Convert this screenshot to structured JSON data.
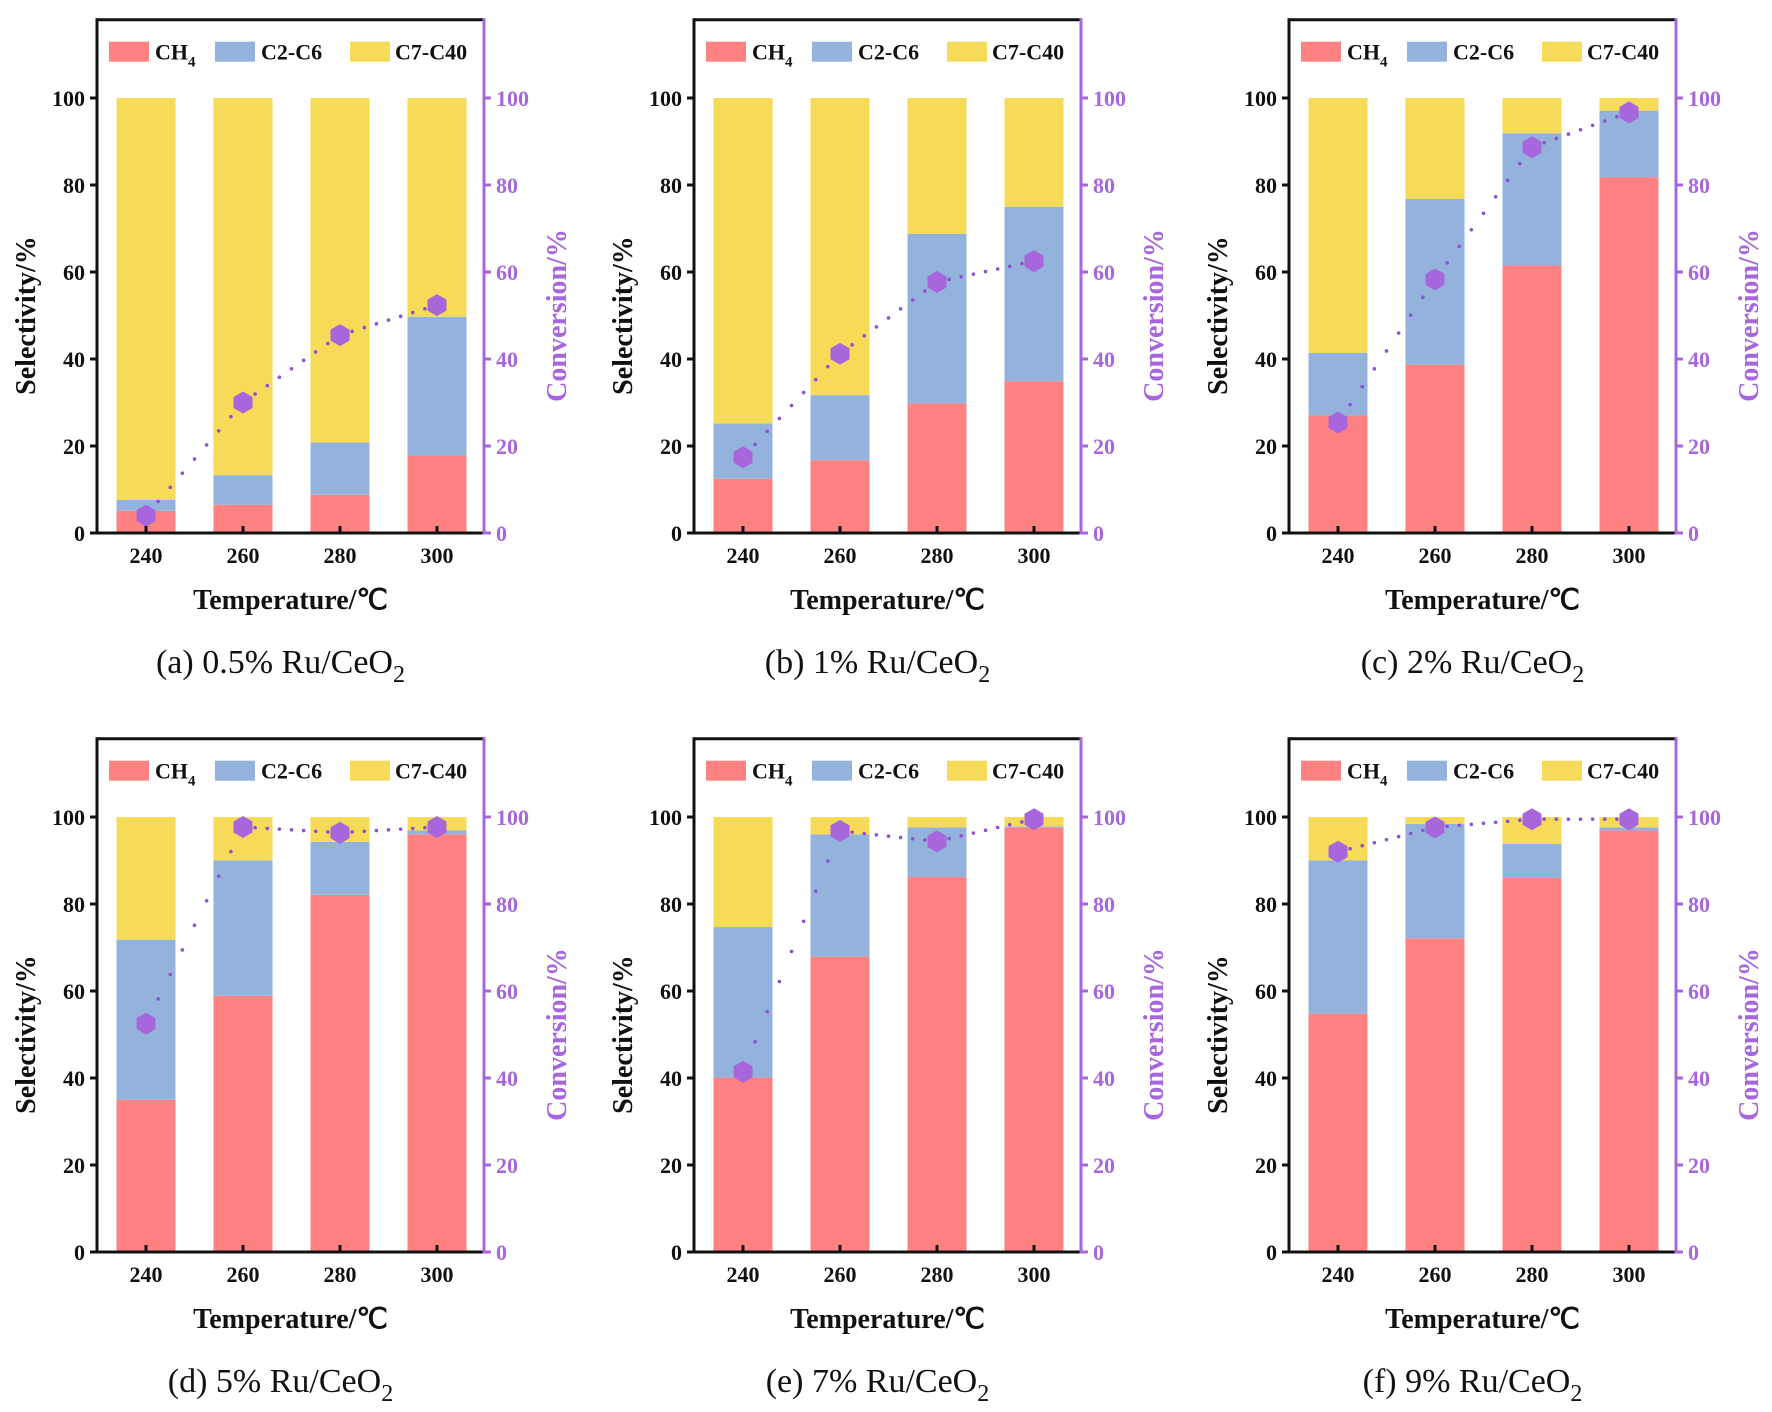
{
  "figure": {
    "series_colors": {
      "CH4": "#FF8282",
      "C2-C6": "#93B3DD",
      "C7-C40": "#F5DB57",
      "conversion": "#A866DD",
      "conversion_dots": "#8C52D2",
      "axis_left": "#111111",
      "axis_right": "#A866DD"
    }
  },
  "chart_data": [
    {
      "panel": "a",
      "caption": "(a) 0.5% Ru/CeO",
      "caption_sub": "2",
      "type": "bar",
      "stacked": true,
      "categories": [
        "240",
        "260",
        "280",
        "300"
      ],
      "xlabel": "Temperature/℃",
      "ylabel": "Selectivity/%",
      "y2label": "Conversion/%",
      "ylim": [
        0,
        118
      ],
      "y2lim": [
        0,
        118
      ],
      "yticks": [
        0,
        20,
        40,
        60,
        80,
        100
      ],
      "legend": {
        "position": "top",
        "entries": [
          "CH",
          "C2-C6",
          "C7-C40"
        ],
        "ch4_sub": "4"
      },
      "series": [
        {
          "name": "CH4",
          "values": [
            5.1,
            6.5,
            8.8,
            17.8
          ]
        },
        {
          "name": "C2-C6",
          "values": [
            2.5,
            6.8,
            12.0,
            31.9
          ]
        },
        {
          "name": "C7-C40",
          "values": [
            92.4,
            86.7,
            79.2,
            50.3
          ]
        }
      ],
      "conversion": {
        "name": "Conversion",
        "type": "scatter-dotted",
        "axis": "right",
        "values": [
          4.0,
          30.0,
          45.5,
          52.4
        ]
      }
    },
    {
      "panel": "b",
      "caption": "(b) 1% Ru/CeO",
      "caption_sub": "2",
      "type": "bar",
      "stacked": true,
      "categories": [
        "240",
        "260",
        "280",
        "300"
      ],
      "xlabel": "Temperature/℃",
      "ylabel": "Selectivity/%",
      "y2label": "Conversion/%",
      "ylim": [
        0,
        118
      ],
      "y2lim": [
        0,
        118
      ],
      "yticks": [
        0,
        20,
        40,
        60,
        80,
        100
      ],
      "legend": {
        "position": "top",
        "entries": [
          "CH",
          "C2-C6",
          "C7-C40"
        ],
        "ch4_sub": "4"
      },
      "series": [
        {
          "name": "CH4",
          "values": [
            12.5,
            16.7,
            29.8,
            34.9
          ]
        },
        {
          "name": "C2-C6",
          "values": [
            12.7,
            15.0,
            39.0,
            40.1
          ]
        },
        {
          "name": "C7-C40",
          "values": [
            74.8,
            68.3,
            31.2,
            25.0
          ]
        }
      ],
      "conversion": {
        "name": "Conversion",
        "type": "scatter-dotted",
        "axis": "right",
        "values": [
          17.4,
          41.2,
          57.7,
          62.5
        ]
      }
    },
    {
      "panel": "c",
      "caption": "(c) 2% Ru/CeO",
      "caption_sub": "2",
      "type": "bar",
      "stacked": true,
      "categories": [
        "240",
        "260",
        "280",
        "300"
      ],
      "xlabel": "Temperature/℃",
      "ylabel": "Selectivity/%",
      "y2label": "Conversion/%",
      "ylim": [
        0,
        118
      ],
      "y2lim": [
        0,
        118
      ],
      "yticks": [
        0,
        20,
        40,
        60,
        80,
        100
      ],
      "legend": {
        "position": "top",
        "entries": [
          "CH",
          "C2-C6",
          "C7-C40"
        ],
        "ch4_sub": "4"
      },
      "series": [
        {
          "name": "CH4",
          "values": [
            27.1,
            38.7,
            61.5,
            81.8
          ]
        },
        {
          "name": "C2-C6",
          "values": [
            14.3,
            38.1,
            30.4,
            15.3
          ]
        },
        {
          "name": "C7-C40",
          "values": [
            58.6,
            23.2,
            8.1,
            2.9
          ]
        }
      ],
      "conversion": {
        "name": "Conversion",
        "type": "scatter-dotted",
        "axis": "right",
        "values": [
          25.4,
          58.3,
          88.7,
          96.7
        ]
      }
    },
    {
      "panel": "d",
      "caption": "(d) 5% Ru/CeO",
      "caption_sub": "2",
      "type": "bar",
      "stacked": true,
      "categories": [
        "240",
        "260",
        "280",
        "300"
      ],
      "xlabel": "Temperature/℃",
      "ylabel": "Selectivity/%",
      "y2label": "Conversion/%",
      "ylim": [
        0,
        118
      ],
      "y2lim": [
        0,
        118
      ],
      "yticks": [
        0,
        20,
        40,
        60,
        80,
        100
      ],
      "legend": {
        "position": "top",
        "entries": [
          "CH",
          "C2-C6",
          "C7-C40"
        ],
        "ch4_sub": "4"
      },
      "series": [
        {
          "name": "CH4",
          "values": [
            35.0,
            58.9,
            82.1,
            96.0
          ]
        },
        {
          "name": "C2-C6",
          "values": [
            36.8,
            31.1,
            12.2,
            0.9
          ]
        },
        {
          "name": "C7-C40",
          "values": [
            28.2,
            10.0,
            5.7,
            3.1
          ]
        }
      ],
      "conversion": {
        "name": "Conversion",
        "type": "scatter-dotted",
        "axis": "right",
        "values": [
          52.5,
          97.7,
          96.4,
          97.7
        ]
      }
    },
    {
      "panel": "e",
      "caption": "(e) 7% Ru/CeO",
      "caption_sub": "2",
      "type": "bar",
      "stacked": true,
      "categories": [
        "240",
        "260",
        "280",
        "300"
      ],
      "xlabel": "Temperature/℃",
      "ylabel": "Selectivity/%",
      "y2label": "Conversion/%",
      "ylim": [
        0,
        118
      ],
      "y2lim": [
        0,
        118
      ],
      "yticks": [
        0,
        20,
        40,
        60,
        80,
        100
      ],
      "legend": {
        "position": "top",
        "entries": [
          "CH",
          "C2-C6",
          "C7-C40"
        ],
        "ch4_sub": "4"
      },
      "series": [
        {
          "name": "CH4",
          "values": [
            40.1,
            67.9,
            86.2,
            97.5
          ]
        },
        {
          "name": "C2-C6",
          "values": [
            34.6,
            28.1,
            11.4,
            0.3
          ]
        },
        {
          "name": "C7-C40",
          "values": [
            25.3,
            4.0,
            2.4,
            2.2
          ]
        }
      ],
      "conversion": {
        "name": "Conversion",
        "type": "scatter-dotted",
        "axis": "right",
        "values": [
          41.4,
          96.8,
          94.4,
          99.5
        ]
      }
    },
    {
      "panel": "f",
      "caption": "(f) 9% Ru/CeO",
      "caption_sub": "2",
      "type": "bar",
      "stacked": true,
      "categories": [
        "240",
        "260",
        "280",
        "300"
      ],
      "xlabel": "Temperature/℃",
      "ylabel": "Selectivity/%",
      "y2label": "Conversion/%",
      "ylim": [
        0,
        118
      ],
      "y2lim": [
        0,
        118
      ],
      "yticks": [
        0,
        20,
        40,
        60,
        80,
        100
      ],
      "legend": {
        "position": "top",
        "entries": [
          "CH",
          "C2-C6",
          "C7-C40"
        ],
        "ch4_sub": "4"
      },
      "series": [
        {
          "name": "CH4",
          "values": [
            54.8,
            72.1,
            86.0,
            96.9
          ]
        },
        {
          "name": "C2-C6",
          "values": [
            35.2,
            26.3,
            7.8,
            0.7
          ]
        },
        {
          "name": "C7-C40",
          "values": [
            10.0,
            1.6,
            6.2,
            2.4
          ]
        }
      ],
      "conversion": {
        "name": "Conversion",
        "type": "scatter-dotted",
        "axis": "right",
        "values": [
          92.0,
          97.6,
          99.5,
          99.5
        ]
      }
    }
  ]
}
